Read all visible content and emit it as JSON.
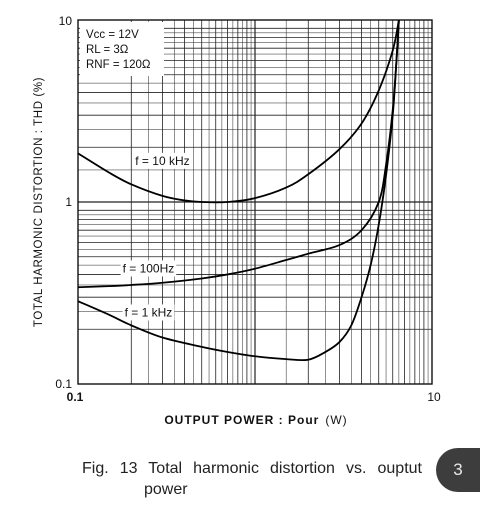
{
  "chart_data": {
    "type": "line",
    "ylabel": "TOTAL HARMONIC DISTORTION : THD (%)",
    "xlabel_main": "OUTPUT POWER : Pour",
    "xlabel_unit": "(W)",
    "xscale": "log",
    "yscale": "log",
    "xlim": [
      0.1,
      10
    ],
    "ylim": [
      0.1,
      10
    ],
    "grid": true,
    "x_tick_labels": [
      "0.1",
      "10"
    ],
    "y_tick_labels": [
      "10",
      "1",
      "0.1"
    ],
    "conditions": [
      "Vcc = 12V",
      "RL = 3Ω",
      "RNF = 120Ω"
    ],
    "series": [
      {
        "name": "f = 10 kHz",
        "x": [
          0.1,
          0.15,
          0.2,
          0.3,
          0.4,
          0.5,
          0.7,
          1.0,
          1.5,
          2.0,
          3.0,
          4.0,
          5.0,
          6.0,
          6.5
        ],
        "y": [
          1.85,
          1.45,
          1.25,
          1.08,
          1.02,
          1.0,
          1.0,
          1.05,
          1.2,
          1.42,
          1.95,
          2.7,
          4.1,
          6.8,
          10.0
        ]
      },
      {
        "name": "f = 100 Hz",
        "x": [
          0.1,
          0.15,
          0.2,
          0.3,
          0.5,
          0.7,
          1.0,
          1.5,
          2.0,
          3.0,
          4.0,
          5.0,
          5.5,
          6.0,
          6.3,
          6.5
        ],
        "y": [
          0.34,
          0.345,
          0.35,
          0.36,
          0.38,
          0.4,
          0.43,
          0.48,
          0.52,
          0.58,
          0.7,
          1.0,
          1.6,
          3.2,
          6.0,
          10.0
        ]
      },
      {
        "name": "f = 1 kHz",
        "x": [
          0.1,
          0.15,
          0.2,
          0.3,
          0.5,
          0.7,
          1.0,
          1.5,
          2.0,
          2.5,
          3.0,
          3.5,
          4.0,
          4.5,
          5.0,
          5.5,
          6.0,
          6.3,
          6.5
        ],
        "y": [
          0.285,
          0.24,
          0.21,
          0.18,
          0.16,
          0.15,
          0.142,
          0.137,
          0.136,
          0.15,
          0.17,
          0.21,
          0.3,
          0.45,
          0.75,
          1.4,
          3.0,
          6.0,
          10.0
        ]
      }
    ],
    "curve_labels": [
      {
        "text": "f = 10 kHz",
        "x": 0.3,
        "y": 1.6
      },
      {
        "text": "f = 100Hz",
        "x": 0.25,
        "y": 0.41
      },
      {
        "text": "f = 1 kHz",
        "x": 0.25,
        "y": 0.235
      }
    ]
  },
  "caption": {
    "line1": "Fig. 13 Total harmonic distortion vs. ouptut",
    "line2": "power"
  },
  "page_number": "3"
}
